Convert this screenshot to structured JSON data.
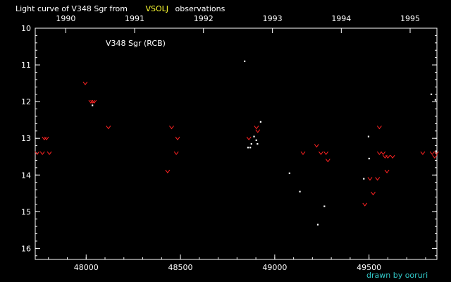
{
  "chart_data": {
    "type": "scatter",
    "title_before": "Light curve of V348 Sgr from",
    "title_accent": "VSOLJ",
    "title_after": "observations",
    "annotation": "V348 Sgr (RCB)",
    "credit": "drawn by ooruri",
    "xlim": [
      47730,
      49860
    ],
    "ylim": [
      10,
      16.3
    ],
    "y_inverted": true,
    "x_ticks": [
      48000,
      48500,
      49000,
      49500
    ],
    "y_ticks": [
      10,
      11,
      12,
      13,
      14,
      15,
      16
    ],
    "year_ticks": [
      {
        "label": "1990",
        "x": 47892
      },
      {
        "label": "1991",
        "x": 48257
      },
      {
        "label": "1992",
        "x": 48622
      },
      {
        "label": "1993",
        "x": 48988
      },
      {
        "label": "1994",
        "x": 49353
      },
      {
        "label": "1995",
        "x": 49718
      }
    ],
    "colors": {
      "background": "#000000",
      "frame": "#ffffff",
      "observation": "#ffffff",
      "fainter_than": "#ff2222",
      "title_accent": "#ffff33",
      "credit": "#33cccc"
    },
    "series": [
      {
        "marker": "dot",
        "color": "#ffffff",
        "points": [
          [
            48033,
            12.1
          ],
          [
            48840,
            10.9
          ],
          [
            48858,
            13.25
          ],
          [
            48870,
            13.25
          ],
          [
            48876,
            13.15
          ],
          [
            48890,
            12.95
          ],
          [
            48902,
            13.05
          ],
          [
            48908,
            13.15
          ],
          [
            48925,
            12.55
          ],
          [
            49078,
            13.95
          ],
          [
            49133,
            14.45
          ],
          [
            49228,
            15.35
          ],
          [
            49263,
            14.85
          ],
          [
            49472,
            14.1
          ],
          [
            49497,
            12.95
          ],
          [
            49500,
            13.55
          ],
          [
            49830,
            11.8
          ],
          [
            49852,
            11.95
          ],
          [
            49855,
            13.35
          ]
        ]
      },
      {
        "marker": "v",
        "color": "#ff2222",
        "points": [
          [
            47740,
            13.4
          ],
          [
            47768,
            13.4
          ],
          [
            47778,
            13.0
          ],
          [
            47790,
            13.0
          ],
          [
            47805,
            13.4
          ],
          [
            47995,
            11.5
          ],
          [
            48025,
            12.0
          ],
          [
            48035,
            12.0
          ],
          [
            48043,
            12.0
          ],
          [
            48118,
            12.7
          ],
          [
            48432,
            13.9
          ],
          [
            48453,
            12.7
          ],
          [
            48478,
            13.4
          ],
          [
            48485,
            13.0
          ],
          [
            48863,
            13.0
          ],
          [
            48903,
            12.7
          ],
          [
            48910,
            12.8
          ],
          [
            49150,
            13.4
          ],
          [
            49222,
            13.2
          ],
          [
            49245,
            13.4
          ],
          [
            49272,
            13.4
          ],
          [
            49282,
            13.6
          ],
          [
            49478,
            14.8
          ],
          [
            49505,
            14.1
          ],
          [
            49522,
            14.5
          ],
          [
            49545,
            14.1
          ],
          [
            49555,
            13.4
          ],
          [
            49555,
            12.7
          ],
          [
            49575,
            13.4
          ],
          [
            49585,
            13.5
          ],
          [
            49595,
            13.9
          ],
          [
            49600,
            13.5
          ],
          [
            49625,
            13.5
          ],
          [
            49785,
            13.4
          ],
          [
            49835,
            13.4
          ],
          [
            49848,
            13.5
          ],
          [
            49858,
            13.4
          ]
        ]
      }
    ]
  }
}
